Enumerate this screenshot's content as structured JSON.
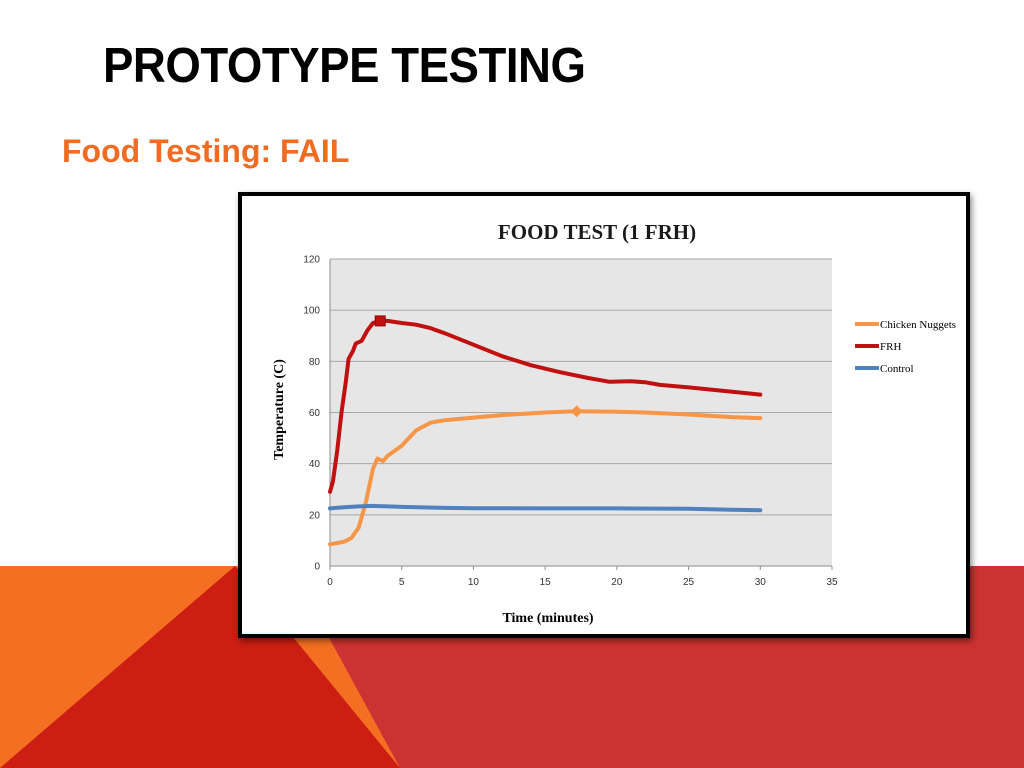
{
  "slide": {
    "title": "PROTOTYPE TESTING",
    "subtitle": "Food Testing: FAIL"
  },
  "colors": {
    "subtitle": "#f06c23",
    "bg_orange": "#f46f22",
    "bg_red": "#cc1e12",
    "bg_crimson": "#cd3232",
    "plot_bg": "#e6e6e6",
    "grid": "#a8a8a8"
  },
  "chart_data": {
    "type": "line",
    "title": "FOOD TEST (1 FRH)",
    "xlabel": "Time (minutes)",
    "ylabel": "Temperature (C)",
    "xlim": [
      0,
      35
    ],
    "ylim": [
      0,
      120
    ],
    "xticks": [
      0,
      5,
      10,
      15,
      20,
      25,
      30,
      35
    ],
    "yticks": [
      0,
      20,
      40,
      60,
      80,
      100,
      120
    ],
    "grid": "horizontal",
    "legend_position": "right",
    "series": [
      {
        "name": "Chicken Nuggets",
        "color": "#f79646",
        "marker": "diamond",
        "marker_point": [
          17.2,
          60.5
        ],
        "points": [
          [
            0,
            8.5
          ],
          [
            1,
            9.5
          ],
          [
            1.5,
            11
          ],
          [
            2,
            15
          ],
          [
            2.5,
            25
          ],
          [
            3,
            38
          ],
          [
            3.3,
            42
          ],
          [
            3.7,
            41
          ],
          [
            4,
            43
          ],
          [
            5,
            47
          ],
          [
            6,
            53
          ],
          [
            7,
            56
          ],
          [
            8,
            57
          ],
          [
            10,
            58
          ],
          [
            12,
            59
          ],
          [
            15,
            60
          ],
          [
            17.2,
            60.5
          ],
          [
            20,
            60.3
          ],
          [
            22,
            60
          ],
          [
            25,
            59.2
          ],
          [
            28,
            58.2
          ],
          [
            30,
            57.8
          ]
        ]
      },
      {
        "name": "FRH",
        "color": "#c0100f",
        "marker": "square",
        "marker_point": [
          3.5,
          95.8
        ],
        "points": [
          [
            0,
            29
          ],
          [
            0.2,
            33
          ],
          [
            0.5,
            45
          ],
          [
            0.8,
            60
          ],
          [
            1.1,
            72
          ],
          [
            1.3,
            81
          ],
          [
            1.6,
            84
          ],
          [
            1.8,
            87
          ],
          [
            2.2,
            88
          ],
          [
            2.6,
            92
          ],
          [
            3,
            95
          ],
          [
            3.5,
            95.8
          ],
          [
            4,
            95.8
          ],
          [
            5,
            95
          ],
          [
            6,
            94.3
          ],
          [
            7,
            93
          ],
          [
            8,
            91
          ],
          [
            10,
            86.5
          ],
          [
            12,
            82
          ],
          [
            14,
            78.5
          ],
          [
            16,
            75.8
          ],
          [
            18,
            73.5
          ],
          [
            19.5,
            72
          ],
          [
            21,
            72.2
          ],
          [
            22,
            71.8
          ],
          [
            23,
            70.8
          ],
          [
            25,
            69.8
          ],
          [
            27,
            68.7
          ],
          [
            29,
            67.6
          ],
          [
            30,
            67
          ]
        ]
      },
      {
        "name": "Control",
        "color": "#4f81bd",
        "marker": "none",
        "points": [
          [
            0,
            22.5
          ],
          [
            1,
            23
          ],
          [
            2,
            23.3
          ],
          [
            3,
            23.5
          ],
          [
            5,
            23.1
          ],
          [
            8,
            22.7
          ],
          [
            10,
            22.6
          ],
          [
            15,
            22.5
          ],
          [
            20,
            22.5
          ],
          [
            25,
            22.4
          ],
          [
            28,
            22
          ],
          [
            30,
            21.8
          ]
        ]
      }
    ]
  }
}
